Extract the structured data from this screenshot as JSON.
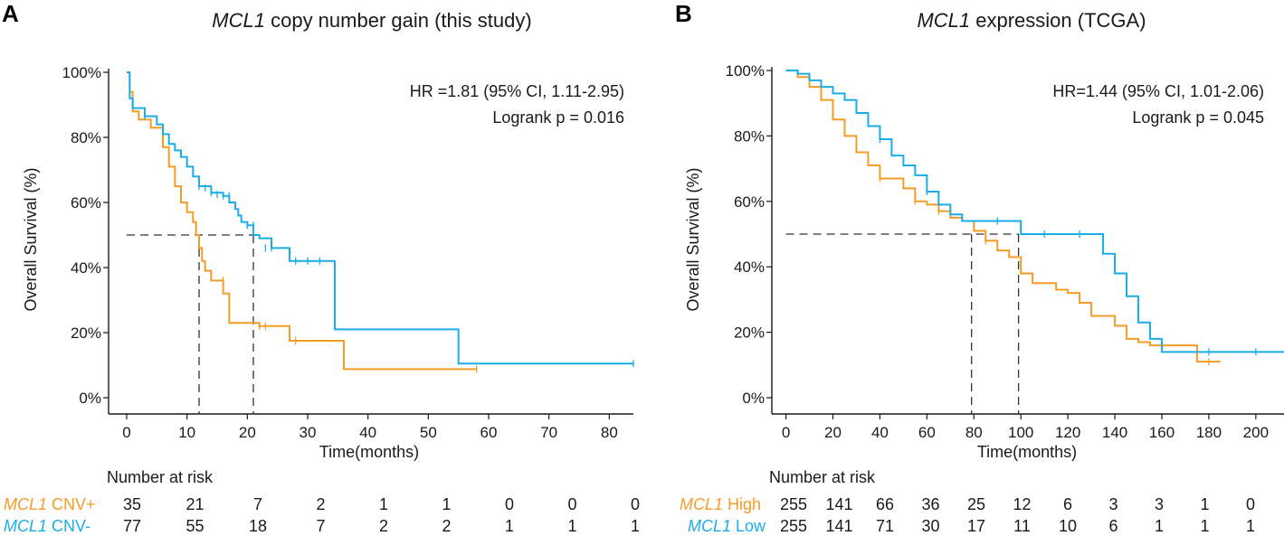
{
  "colors": {
    "group1": "#F39C26",
    "group2": "#1AAEE8",
    "axis": "#1a1a1a",
    "ref": "#333333"
  },
  "panels": [
    {
      "letter": "A",
      "title_italic": "MCL1",
      "title_rest": " copy number gain (this study)",
      "hr_text": "HR =1.81 (95% CI, 1.11-2.95)",
      "p_text": "Logrank p = 0.016",
      "risk_header": "Number at risk",
      "groups": [
        {
          "label_italic": "MCL1",
          "label_rest": " CNV+",
          "risk": [
            "35",
            "21",
            "7",
            "2",
            "1",
            "1",
            "0",
            "0",
            "0"
          ]
        },
        {
          "label_italic": "MCL1",
          "label_rest": " CNV-",
          "risk": [
            "77",
            "55",
            "18",
            "7",
            "2",
            "2",
            "1",
            "1",
            "1"
          ]
        }
      ]
    },
    {
      "letter": "B",
      "title_italic": "MCL1",
      "title_rest": " expression (TCGA)",
      "hr_text": "HR=1.44 (95% CI, 1.01-2.06)",
      "p_text": "Logrank p = 0.045",
      "risk_header": "Number at risk",
      "groups": [
        {
          "label_italic": "MCL1",
          "label_rest": " High",
          "risk": [
            "255",
            "141",
            "66",
            "36",
            "25",
            "12",
            "6",
            "3",
            "3",
            "1",
            "0"
          ]
        },
        {
          "label_italic": "MCL1",
          "label_rest": " Low",
          "risk": [
            "255",
            "141",
            "71",
            "30",
            "17",
            "11",
            "10",
            "6",
            "1",
            "1",
            "1"
          ]
        }
      ]
    }
  ],
  "chart_data": [
    {
      "type": "line",
      "subtype": "kaplan-meier",
      "title": "MCL1 copy number gain (this study)",
      "xlabel": "Time(months)",
      "ylabel": "Overall Survival (%)",
      "xlim": [
        -3,
        84
      ],
      "ylim": [
        0,
        100
      ],
      "xticks": [
        0,
        10,
        20,
        30,
        40,
        50,
        60,
        70,
        80
      ],
      "yticks": [
        0,
        20,
        40,
        60,
        80,
        100
      ],
      "tick_labels_y": [
        "0%",
        "20%",
        "40%",
        "60%",
        "80%",
        "100%"
      ],
      "median_line": 50,
      "medians": [
        12,
        21
      ],
      "series": [
        {
          "name": "MCL1 CNV+",
          "x": [
            0,
            0.5,
            1,
            2,
            4,
            6,
            7,
            8,
            9,
            10,
            11,
            11.5,
            12,
            12.5,
            13,
            14,
            16,
            17,
            22,
            27,
            36,
            58
          ],
          "y": [
            100,
            94,
            88,
            85.5,
            83,
            77,
            71,
            65,
            60,
            57,
            54,
            50,
            46,
            42,
            39,
            36,
            32,
            23,
            22,
            17.5,
            8.8,
            8.8
          ],
          "censored": [
            [
              16,
              36
            ],
            [
              22,
              22
            ],
            [
              23,
              22
            ],
            [
              28,
              17.5
            ],
            [
              58,
              8.8
            ]
          ]
        },
        {
          "name": "MCL1 CNV-",
          "x": [
            0,
            0.5,
            1,
            3,
            5,
            6,
            7,
            8,
            9,
            10,
            11,
            12,
            14,
            16,
            17,
            18,
            18.5,
            19,
            20,
            21,
            22,
            24,
            27,
            34,
            34.5,
            55,
            84
          ],
          "y": [
            100,
            92,
            89,
            86.5,
            84,
            81,
            78,
            76,
            74,
            71,
            68,
            65,
            63,
            62,
            60,
            58,
            56,
            54,
            53,
            50,
            49,
            46,
            42,
            42,
            21,
            10.5,
            10.5
          ],
          "censored": [
            [
              3,
              86.5
            ],
            [
              12,
              65
            ],
            [
              13,
              64.5
            ],
            [
              14,
              63
            ],
            [
              15,
              62.5
            ],
            [
              16,
              62
            ],
            [
              17,
              62
            ],
            [
              20,
              53
            ],
            [
              21,
              53
            ],
            [
              23,
              46
            ],
            [
              24,
              46
            ],
            [
              28,
              42
            ],
            [
              30,
              42
            ],
            [
              32,
              42
            ],
            [
              84,
              10.5
            ]
          ]
        }
      ]
    },
    {
      "type": "line",
      "subtype": "kaplan-meier",
      "title": "MCL1 expression (TCGA)",
      "xlabel": "Time(months)",
      "ylabel": "Overall Survival (%)",
      "xlim": [
        -6,
        212
      ],
      "ylim": [
        0,
        100
      ],
      "xticks": [
        0,
        20,
        40,
        60,
        80,
        100,
        120,
        140,
        160,
        180,
        200
      ],
      "yticks": [
        0,
        20,
        40,
        60,
        80,
        100
      ],
      "tick_labels_y": [
        "0%",
        "20%",
        "40%",
        "60%",
        "80%",
        "100%"
      ],
      "median_line": 50,
      "medians": [
        79,
        99
      ],
      "series": [
        {
          "name": "MCL1 High",
          "x": [
            0,
            5,
            10,
            15,
            20,
            25,
            30,
            35,
            40,
            45,
            50,
            55,
            60,
            65,
            70,
            75,
            80,
            85,
            90,
            95,
            100,
            105,
            110,
            115,
            120,
            125,
            130,
            135,
            140,
            145,
            150,
            155,
            160,
            165,
            170,
            175,
            180,
            185
          ],
          "y": [
            100,
            98,
            95,
            91,
            85,
            80,
            75,
            71,
            67,
            67,
            64,
            60,
            59,
            57,
            55,
            54,
            51,
            48,
            45,
            43,
            38,
            35,
            35,
            33,
            32,
            29,
            25,
            25,
            22,
            18,
            17,
            16,
            16,
            16,
            16,
            11,
            11,
            11
          ],
          "censored": [
            [
              40,
              67
            ],
            [
              55,
              60
            ],
            [
              65,
              57
            ],
            [
              85,
              48
            ],
            [
              180,
              11
            ]
          ]
        },
        {
          "name": "MCL1 Low",
          "x": [
            0,
            5,
            10,
            15,
            20,
            25,
            30,
            35,
            40,
            45,
            50,
            55,
            60,
            65,
            70,
            75,
            80,
            85,
            90,
            95,
            100,
            105,
            110,
            115,
            120,
            125,
            130,
            135,
            140,
            145,
            150,
            155,
            160,
            170,
            180,
            190,
            200,
            212
          ],
          "y": [
            100,
            99,
            97,
            95,
            93,
            91,
            87,
            83,
            79,
            74,
            71,
            68,
            63,
            59,
            56,
            54,
            54,
            54,
            54,
            54,
            50,
            50,
            50,
            50,
            50,
            50,
            50,
            44,
            38,
            31,
            23,
            18,
            14,
            14,
            14,
            14,
            14,
            14
          ],
          "censored": [
            [
              40,
              79
            ],
            [
              60,
              63
            ],
            [
              90,
              54
            ],
            [
              110,
              50
            ],
            [
              125,
              50
            ],
            [
              180,
              14
            ],
            [
              200,
              14
            ]
          ]
        }
      ]
    }
  ]
}
